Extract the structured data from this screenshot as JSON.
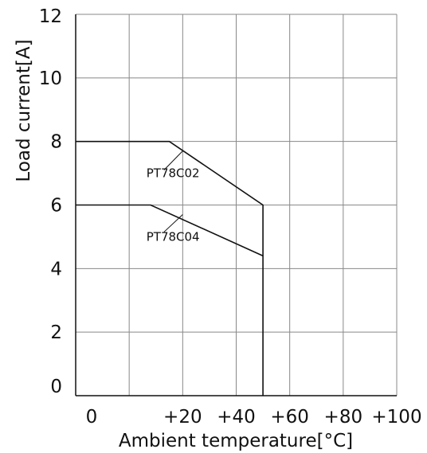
{
  "chart_data": {
    "type": "line",
    "title": "",
    "xlabel": "Ambient temperature[°C]",
    "ylabel": "Load current[A]",
    "xlim": [
      -20,
      100
    ],
    "ylim": [
      0,
      12
    ],
    "grid": true,
    "x_ticks": [
      {
        "value": -20,
        "label": ""
      },
      {
        "value": 0,
        "label": "0"
      },
      {
        "value": 20,
        "label": "+20"
      },
      {
        "value": 40,
        "label": "+40"
      },
      {
        "value": 60,
        "label": "+60"
      },
      {
        "value": 80,
        "label": "+80"
      },
      {
        "value": 100,
        "label": "+100"
      }
    ],
    "y_ticks": [
      {
        "value": 0,
        "label": "0"
      },
      {
        "value": 2,
        "label": "2"
      },
      {
        "value": 4,
        "label": "4"
      },
      {
        "value": 6,
        "label": "6"
      },
      {
        "value": 8,
        "label": "8"
      },
      {
        "value": 10,
        "label": "10"
      },
      {
        "value": 12,
        "label": "12"
      }
    ],
    "series": [
      {
        "name": "PT78C02",
        "color": "#111111",
        "points": [
          [
            -20,
            8
          ],
          [
            15,
            8
          ],
          [
            50,
            6
          ],
          [
            50,
            0
          ]
        ],
        "label_anchor": [
          0,
          7
        ],
        "leader_from": [
          13,
          7.1
        ],
        "leader_to": [
          20,
          7.7
        ]
      },
      {
        "name": "PT78C04",
        "color": "#111111",
        "points": [
          [
            -20,
            6
          ],
          [
            8,
            6
          ],
          [
            50,
            4.4
          ]
        ],
        "label_anchor": [
          0,
          5
        ],
        "leader_from": [
          13,
          5.15
        ],
        "leader_to": [
          20,
          5.7
        ]
      }
    ]
  }
}
